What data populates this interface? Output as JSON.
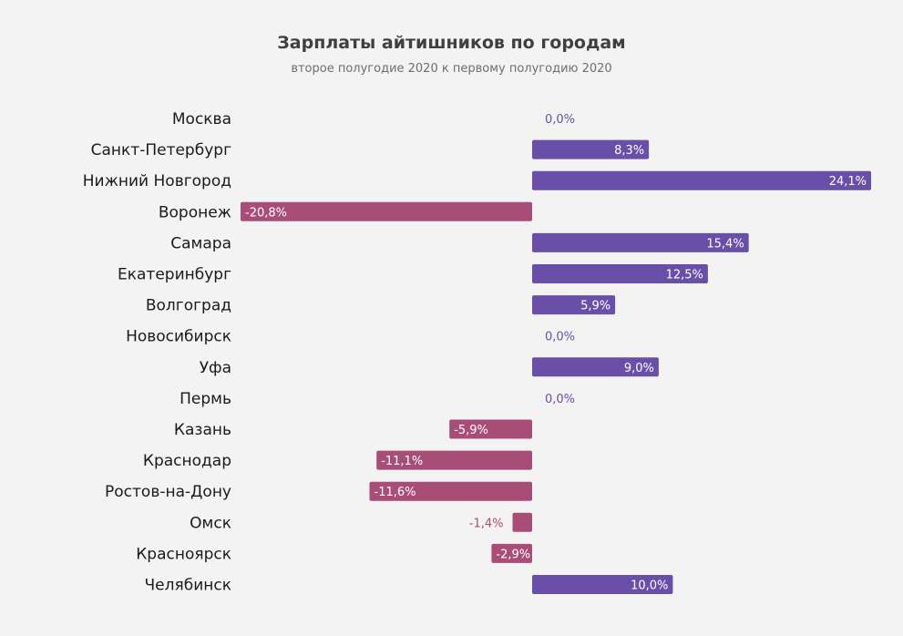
{
  "chart_data": {
    "type": "bar",
    "orientation": "horizontal",
    "title": "Зарплаты айтишников по городам",
    "subtitle": "второе полугодие 2020 к первому полугодию 2020",
    "categories": [
      "Москва",
      "Санкт-Петербург",
      "Нижний Новгород",
      "Воронеж",
      "Самара",
      "Екатеринбург",
      "Волгоград",
      "Новосибирск",
      "Уфа",
      "Пермь",
      "Казань",
      "Краснодар",
      "Ростов-на-Дону",
      "Омск",
      "Красноярск",
      "Челябинск"
    ],
    "values": [
      0.0,
      8.3,
      24.1,
      -20.8,
      15.4,
      12.5,
      5.9,
      0.0,
      9.0,
      0.0,
      -5.9,
      -11.1,
      -11.6,
      -1.4,
      -2.9,
      10.0
    ],
    "value_labels": [
      "0,0%",
      "8,3%",
      "24,1%",
      "-20,8%",
      "15,4%",
      "12,5%",
      "5,9%",
      "0,0%",
      "9,0%",
      "0,0%",
      "-5,9%",
      "-11,1%",
      "-11,6%",
      "-1,4%",
      "-2,9%",
      "10,0%"
    ],
    "xlim": [
      -20.8,
      24.1
    ],
    "colors": {
      "positive": "#6a4fa8",
      "negative": "#a84d78",
      "zero_label": "#6a4fa8"
    }
  }
}
